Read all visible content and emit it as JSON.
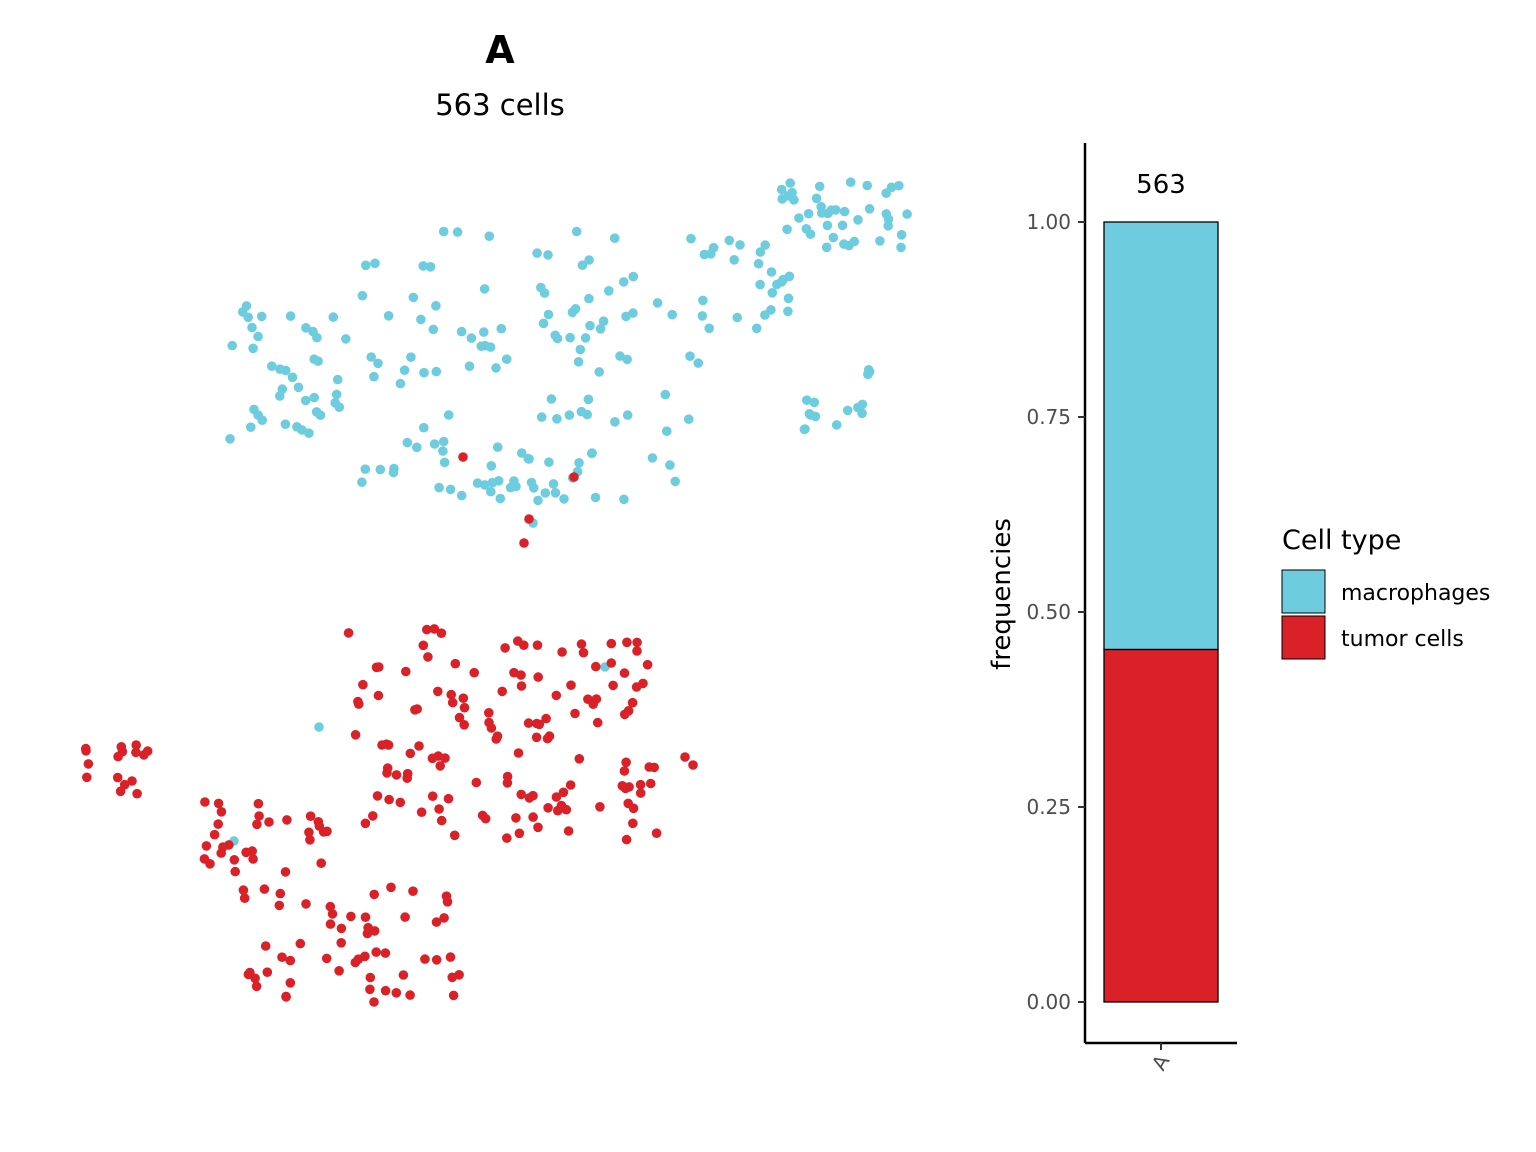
{
  "chart_data": [
    {
      "type": "scatter",
      "title": "A",
      "subtitle": "563 cells",
      "series": [
        {
          "name": "macrophages",
          "color": "#6DCDDE"
        },
        {
          "name": "tumor cells",
          "color": "#D92127"
        }
      ]
    },
    {
      "type": "bar",
      "stacked": true,
      "categories": [
        "A"
      ],
      "series": [
        {
          "name": "tumor cells",
          "values": [
            0.452
          ],
          "color": "#D92127"
        },
        {
          "name": "macrophages",
          "values": [
            0.548
          ],
          "color": "#6DCDDE"
        }
      ],
      "bar_total_labels": [
        "563"
      ],
      "ylabel": "frequencies",
      "xlabel": "",
      "ylim": [
        0,
        1.1
      ],
      "yticks": [
        "0.00",
        "0.25",
        "0.50",
        "0.75",
        "1.00"
      ],
      "yticks_values": [
        0,
        0.25,
        0.5,
        0.75,
        1.0
      ],
      "grid": false,
      "legend": {
        "title": "Cell type",
        "placement": "right",
        "items": [
          {
            "label": "macrophages",
            "color": "#6DCDDE"
          },
          {
            "label": "tumor cells",
            "color": "#D92127"
          }
        ]
      }
    }
  ]
}
